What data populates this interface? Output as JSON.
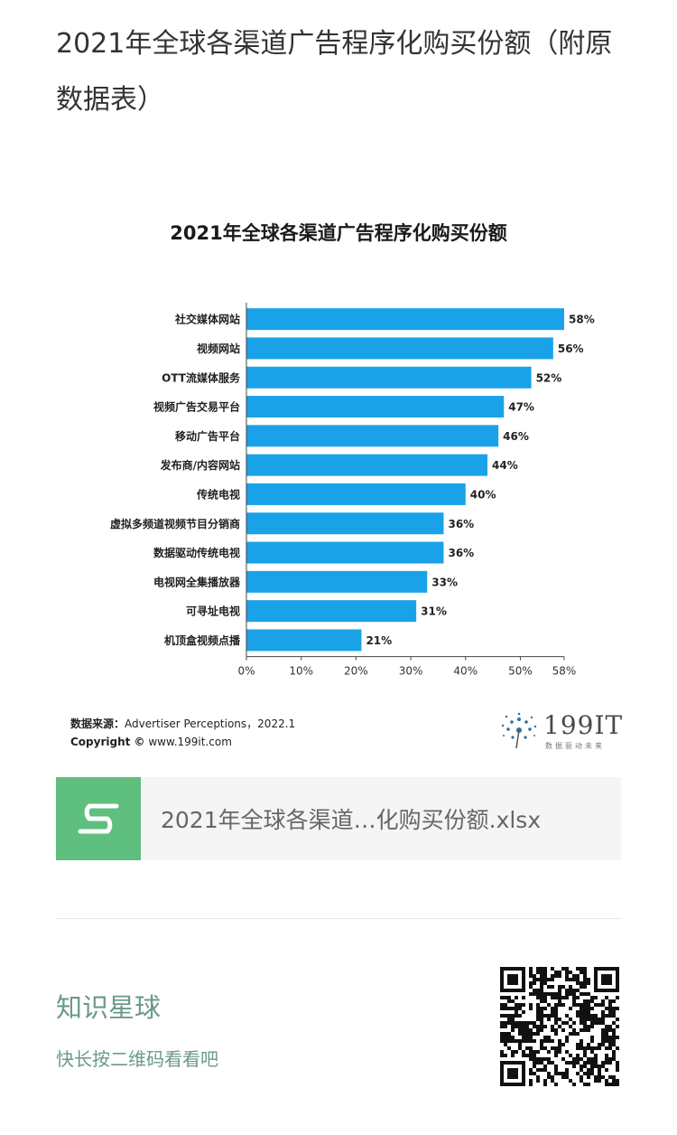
{
  "article": {
    "title": "2021年全球各渠道广告程序化购买份额（附原数据表）"
  },
  "chart_data": {
    "type": "bar",
    "orientation": "horizontal",
    "title": "2021年全球各渠道广告程序化购买份额",
    "categories": [
      "社交媒体网站",
      "视频网站",
      "OTT流媒体服务",
      "视频广告交易平台",
      "移动广告平台",
      "发布商/内容网站",
      "传统电视",
      "虚拟多频道视频节目分销商",
      "数据驱动传统电视",
      "电视网全集播放器",
      "可寻址电视",
      "机顶盒视频点播"
    ],
    "values": [
      58,
      56,
      52,
      47,
      46,
      44,
      40,
      36,
      36,
      33,
      31,
      21
    ],
    "data_labels": [
      "58%",
      "56%",
      "52%",
      "47%",
      "46%",
      "44%",
      "40%",
      "36%",
      "36%",
      "33%",
      "31%",
      "21%"
    ],
    "x_ticks": [
      0,
      10,
      20,
      30,
      40,
      50,
      58
    ],
    "x_tick_labels": [
      "0%",
      "10%",
      "20%",
      "30%",
      "40%",
      "50%",
      "58%"
    ],
    "xlim": [
      0,
      58
    ],
    "bar_color": "#1aa2e8",
    "grid": false
  },
  "chart_footer": {
    "source_label": "数据来源：",
    "source_value": "Advertiser Perceptions，2022.1",
    "copyright_label": "Copyright ©",
    "copyright_value": " www.199it.com",
    "brand_name": "199IT",
    "brand_slogan": "数据驱动未来"
  },
  "attachment": {
    "file_name": "2021年全球各渠道…化购买份额.xlsx",
    "icon": "spreadsheet-s-icon",
    "icon_color": "#5fbf7f"
  },
  "promo": {
    "title": "知识星球",
    "subtitle": "快长按二维码看看吧",
    "accent_color": "#6a9a87"
  }
}
